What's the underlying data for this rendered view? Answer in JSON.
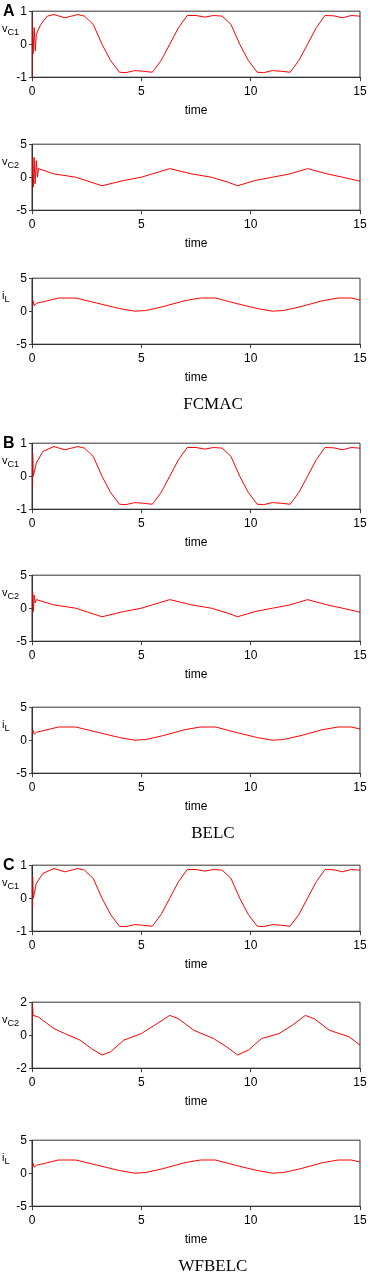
{
  "chart_data": [
    {
      "type": "line",
      "title": "A",
      "xlabel": "time",
      "ylabel": "v$_{C1}$",
      "xlim": [
        0,
        15
      ],
      "xticks": [
        0,
        5,
        10,
        15
      ],
      "ylim": [
        -1,
        1
      ],
      "yticks": [
        -1,
        0,
        1
      ],
      "x": [
        0,
        0.02,
        0.05,
        0.1,
        0.15,
        0.2,
        0.4,
        0.7,
        1.0,
        1.5,
        2.1,
        2.4,
        2.8,
        3.2,
        3.6,
        4.0,
        4.3,
        4.7,
        5.1,
        5.5,
        5.9,
        6.3,
        6.7,
        7.1,
        7.5,
        7.9,
        8.3,
        8.7,
        9.1,
        9.5,
        9.9,
        10.3,
        10.6,
        11.0,
        11.4,
        11.8,
        12.2,
        12.6,
        13.0,
        13.4,
        13.8,
        14.2,
        14.6,
        15
      ],
      "series": [
        {
          "color": "#ff0000",
          "values": [
            -1,
            0.8,
            -0.3,
            0.5,
            -0.2,
            0.3,
            0.6,
            0.85,
            0.9,
            0.8,
            0.9,
            0.85,
            0.6,
            0,
            -0.5,
            -0.85,
            -0.86,
            -0.8,
            -0.82,
            -0.85,
            -0.5,
            0,
            0.5,
            0.87,
            0.87,
            0.82,
            0.87,
            0.85,
            0.6,
            0,
            -0.5,
            -0.85,
            -0.86,
            -0.8,
            -0.82,
            -0.85,
            -0.5,
            0,
            0.5,
            0.87,
            0.86,
            0.8,
            0.87,
            0.85
          ]
        }
      ]
    },
    {
      "type": "line",
      "xlabel": "time",
      "ylabel": "v$_{C2}$",
      "xlim": [
        0,
        15
      ],
      "xticks": [
        0,
        5,
        10,
        15
      ],
      "ylim": [
        -5,
        5
      ],
      "yticks": [
        -5,
        0,
        5
      ],
      "x": [
        0,
        0.03,
        0.06,
        0.1,
        0.14,
        0.2,
        0.25,
        0.3,
        1,
        2,
        3.2,
        4.2,
        5,
        5.5,
        6.3,
        7.3,
        8.2,
        9,
        9.4,
        10.2,
        11,
        11.8,
        12.6,
        13.5,
        14.2,
        15
      ],
      "series": [
        {
          "color": "#ff0000",
          "values": [
            0,
            3,
            -1.5,
            3,
            -1,
            2.5,
            0,
            1.3,
            0.5,
            0,
            -1.3,
            -0.5,
            0,
            0.5,
            1.3,
            0.5,
            0,
            -0.8,
            -1.3,
            -0.5,
            0,
            0.5,
            1.3,
            0.5,
            0,
            -0.6
          ]
        }
      ]
    },
    {
      "type": "line",
      "xlabel": "time",
      "ylabel": "i$_{L}$",
      "xlim": [
        0,
        15
      ],
      "xticks": [
        0,
        5,
        10,
        15
      ],
      "ylim": [
        -5,
        5
      ],
      "yticks": [
        -5,
        0,
        5
      ],
      "annotations": [
        "FCMAC"
      ],
      "x": [
        0,
        0.05,
        0.1,
        0.2,
        0.6,
        1.2,
        2,
        3,
        4,
        4.7,
        5.2,
        6,
        7,
        7.7,
        8.4,
        9.3,
        10.3,
        11,
        11.5,
        12.3,
        13.3,
        14,
        14.6,
        15
      ],
      "series": [
        {
          "color": "#ff0000",
          "values": [
            1,
            1.6,
            0.8,
            1.2,
            1.5,
            2,
            2,
            1.2,
            0.4,
            0,
            0.1,
            0.7,
            1.6,
            2,
            2,
            1.2,
            0.4,
            0,
            0.1,
            0.7,
            1.6,
            2,
            2,
            1.7
          ]
        }
      ]
    },
    {
      "type": "line",
      "title": "B",
      "xlabel": "time",
      "ylabel": "v$_{C1}$",
      "xlim": [
        0,
        15
      ],
      "xticks": [
        0,
        5,
        10,
        15
      ],
      "ylim": [
        -1,
        1
      ],
      "yticks": [
        -1,
        0,
        1
      ],
      "x": [
        0,
        0.03,
        0.06,
        0.2,
        0.5,
        1.0,
        1.5,
        2.1,
        2.4,
        2.8,
        3.2,
        3.6,
        4.0,
        4.3,
        4.7,
        5.1,
        5.5,
        5.9,
        6.3,
        6.7,
        7.1,
        7.5,
        7.9,
        8.3,
        8.7,
        9.1,
        9.5,
        9.9,
        10.3,
        10.6,
        11.0,
        11.4,
        11.8,
        12.2,
        12.6,
        13.0,
        13.4,
        13.8,
        14.2,
        14.6,
        15
      ],
      "series": [
        {
          "color": "#ff0000",
          "values": [
            -0.3,
            0.7,
            0,
            0.4,
            0.75,
            0.9,
            0.8,
            0.9,
            0.85,
            0.6,
            0,
            -0.5,
            -0.85,
            -0.86,
            -0.8,
            -0.82,
            -0.85,
            -0.5,
            0,
            0.5,
            0.87,
            0.87,
            0.82,
            0.87,
            0.85,
            0.6,
            0,
            -0.5,
            -0.85,
            -0.86,
            -0.8,
            -0.82,
            -0.85,
            -0.5,
            0,
            0.5,
            0.87,
            0.86,
            0.8,
            0.87,
            0.85
          ]
        }
      ]
    },
    {
      "type": "line",
      "xlabel": "time",
      "ylabel": "v$_{C2}$",
      "xlim": [
        0,
        15
      ],
      "xticks": [
        0,
        5,
        10,
        15
      ],
      "ylim": [
        -5,
        5
      ],
      "yticks": [
        -5,
        0,
        5
      ],
      "x": [
        0,
        0.03,
        0.06,
        0.1,
        0.15,
        0.2,
        1,
        2,
        3.2,
        4.2,
        5,
        5.5,
        6.3,
        7.3,
        8.2,
        9,
        9.4,
        10.2,
        11,
        11.8,
        12.6,
        13.5,
        14.2,
        15
      ],
      "series": [
        {
          "color": "#ff0000",
          "values": [
            0,
            2.5,
            -0.5,
            2,
            0.8,
            1.3,
            0.5,
            0,
            -1.3,
            -0.5,
            0,
            0.5,
            1.3,
            0.5,
            0,
            -0.8,
            -1.3,
            -0.5,
            0,
            0.5,
            1.3,
            0.5,
            0,
            -0.6
          ]
        }
      ]
    },
    {
      "type": "line",
      "xlabel": "time",
      "ylabel": "i$_{L}$",
      "xlim": [
        0,
        15
      ],
      "xticks": [
        0,
        5,
        10,
        15
      ],
      "ylim": [
        -5,
        5
      ],
      "yticks": [
        -5,
        0,
        5
      ],
      "annotations": [
        "BELC"
      ],
      "x": [
        0,
        0.05,
        0.1,
        0.2,
        0.6,
        1.2,
        2,
        3,
        4,
        4.7,
        5.2,
        6,
        7,
        7.7,
        8.4,
        9.3,
        10.3,
        11,
        11.5,
        12.3,
        13.3,
        14,
        14.6,
        15
      ],
      "series": [
        {
          "color": "#ff0000",
          "values": [
            1,
            1.5,
            0.9,
            1.2,
            1.5,
            2,
            2,
            1.2,
            0.4,
            0,
            0.1,
            0.7,
            1.6,
            2,
            2,
            1.2,
            0.4,
            0,
            0.1,
            0.7,
            1.6,
            2,
            2,
            1.7
          ]
        }
      ]
    },
    {
      "type": "line",
      "title": "C",
      "xlabel": "time",
      "ylabel": "v$_{C1}$",
      "xlim": [
        0,
        15
      ],
      "xticks": [
        0,
        5,
        10,
        15
      ],
      "ylim": [
        -1,
        1
      ],
      "yticks": [
        -1,
        0,
        1
      ],
      "x": [
        0,
        0.03,
        0.06,
        0.2,
        0.5,
        1.0,
        1.5,
        2.1,
        2.4,
        2.8,
        3.2,
        3.6,
        4.0,
        4.3,
        4.7,
        5.1,
        5.5,
        5.9,
        6.3,
        6.7,
        7.1,
        7.5,
        7.9,
        8.3,
        8.7,
        9.1,
        9.5,
        9.9,
        10.3,
        10.6,
        11.0,
        11.4,
        11.8,
        12.2,
        12.6,
        13.0,
        13.4,
        13.8,
        14.2,
        14.6,
        15
      ],
      "series": [
        {
          "color": "#ff0000",
          "values": [
            -0.3,
            0.65,
            0,
            0.45,
            0.75,
            0.9,
            0.8,
            0.9,
            0.85,
            0.6,
            0,
            -0.5,
            -0.85,
            -0.86,
            -0.8,
            -0.82,
            -0.85,
            -0.5,
            0,
            0.5,
            0.87,
            0.87,
            0.82,
            0.87,
            0.85,
            0.6,
            0,
            -0.5,
            -0.85,
            -0.86,
            -0.8,
            -0.82,
            -0.85,
            -0.5,
            0,
            0.5,
            0.87,
            0.86,
            0.8,
            0.87,
            0.85
          ]
        }
      ]
    },
    {
      "type": "line",
      "xlabel": "time",
      "ylabel": "v$_{C2}$",
      "xlim": [
        0,
        15
      ],
      "xticks": [
        0,
        5,
        10,
        15
      ],
      "ylim": [
        -2,
        2
      ],
      "yticks": [
        -2,
        0,
        2
      ],
      "x": [
        0,
        0.02,
        0.05,
        0.3,
        1,
        1.5,
        2.2,
        2.7,
        3.2,
        3.6,
        4.2,
        5,
        5.6,
        6.3,
        6.7,
        7.4,
        8.3,
        8.9,
        9.4,
        9.9,
        10.5,
        11.3,
        11.9,
        12.5,
        12.9,
        13.6,
        14.5,
        15
      ],
      "series": [
        {
          "color": "#ff0000",
          "values": [
            0.8,
            2,
            1.2,
            1.1,
            0.4,
            0.1,
            -0.3,
            -0.8,
            -1.2,
            -1.0,
            -0.3,
            0.1,
            0.6,
            1.2,
            1.0,
            0.3,
            -0.2,
            -0.7,
            -1.2,
            -0.9,
            -0.2,
            0.1,
            0.6,
            1.2,
            1.0,
            0.3,
            -0.1,
            -0.6
          ]
        }
      ]
    },
    {
      "type": "line",
      "xlabel": "time",
      "ylabel": "i$_{L}$",
      "xlim": [
        0,
        15
      ],
      "xticks": [
        0,
        5,
        10,
        15
      ],
      "ylim": [
        -5,
        5
      ],
      "yticks": [
        -5,
        0,
        5
      ],
      "annotations": [
        "WFBELC"
      ],
      "x": [
        0,
        0.05,
        0.1,
        0.2,
        0.6,
        1.2,
        2,
        3,
        4,
        4.7,
        5.2,
        6,
        7,
        7.7,
        8.4,
        9.3,
        10.3,
        11,
        11.5,
        12.3,
        13.3,
        14,
        14.6,
        15
      ],
      "series": [
        {
          "color": "#ff0000",
          "values": [
            1,
            1.5,
            0.9,
            1.2,
            1.5,
            2,
            2,
            1.2,
            0.4,
            0,
            0.1,
            0.7,
            1.6,
            2,
            2,
            1.2,
            0.4,
            0,
            0.1,
            0.7,
            1.6,
            2,
            2,
            1.7
          ]
        }
      ]
    }
  ]
}
